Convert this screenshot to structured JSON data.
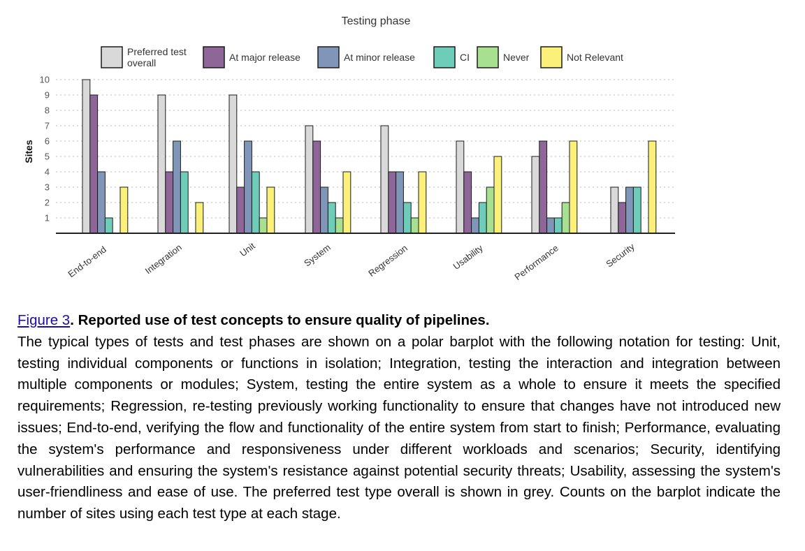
{
  "chart_data": {
    "type": "bar",
    "title": "Testing phase",
    "ylabel": "Sites",
    "xlabel": "",
    "ylim": [
      0,
      10
    ],
    "yticks": [
      1,
      2,
      3,
      4,
      5,
      6,
      7,
      8,
      9,
      10
    ],
    "grid": true,
    "legend_position": "top",
    "categories": [
      "End-to-end",
      "Integration",
      "Unit",
      "System",
      "Regression",
      "Usability",
      "Performance",
      "Security"
    ],
    "series": [
      {
        "name": "Preferred test overall",
        "label_lines": [
          "Preferred test",
          "overall"
        ],
        "color": "#d9d9d9",
        "values": [
          10,
          9,
          9,
          7,
          7,
          6,
          5,
          3
        ]
      },
      {
        "name": "At major release",
        "color": "#8e6698",
        "values": [
          9,
          4,
          3,
          6,
          4,
          4,
          6,
          2
        ]
      },
      {
        "name": "At minor release",
        "color": "#8096b8",
        "values": [
          4,
          6,
          6,
          3,
          4,
          1,
          1,
          3
        ]
      },
      {
        "name": "CI",
        "color": "#6ecdb8",
        "values": [
          1,
          4,
          4,
          2,
          2,
          2,
          1,
          3
        ]
      },
      {
        "name": "Never",
        "color": "#a6e090",
        "values": [
          0,
          0,
          1,
          1,
          1,
          3,
          2,
          0
        ]
      },
      {
        "name": "Not Relevant",
        "color": "#fbf07a",
        "values": [
          3,
          2,
          3,
          4,
          4,
          5,
          6,
          6
        ]
      }
    ]
  },
  "caption": {
    "figure_ref": "Figure 3",
    "title": ". Reported use of test concepts to ensure quality of pipelines.",
    "body": "The typical types of tests and test phases are shown on a polar barplot with the following notation for testing: Unit, testing individual components or functions in isolation; Integration, testing the interaction and integration between multiple components or modules; System, testing the entire system as a whole to ensure it meets the specified requirements; Regression, re-testing previously working functionality to ensure that changes have not introduced new issues; End-to-end, verifying the flow and functionality of the entire system from start to finish; Performance, evaluating the system's performance and responsiveness under different workloads and scenarios; Security, identifying vulnerabilities and ensuring the system's resistance against potential security threats; Usability, assessing the system's user-friendliness and ease of use. The preferred test type overall is shown in grey. Counts on the barplot indicate the number of sites using each test type at each stage."
  },
  "colors": {
    "link": "#1a0dab",
    "axis": "#222222",
    "grid": "#bbbbbb"
  }
}
